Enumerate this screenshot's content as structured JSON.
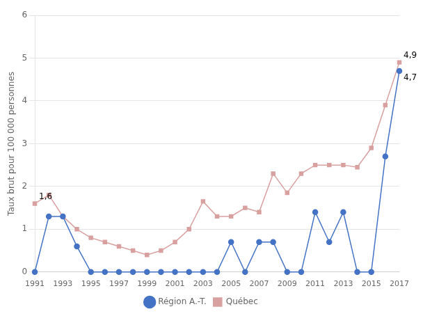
{
  "chart_data": {
    "type": "line",
    "x": [
      1991,
      1992,
      1993,
      1994,
      1995,
      1996,
      1997,
      1998,
      1999,
      2000,
      2001,
      2002,
      2003,
      2004,
      2005,
      2006,
      2007,
      2008,
      2009,
      2010,
      2011,
      2012,
      2013,
      2014,
      2015,
      2016,
      2017
    ],
    "series": [
      {
        "name": "Région A.-T.",
        "color": "#4472C4",
        "marker": "circle",
        "values": [
          0.0,
          1.3,
          1.3,
          0.6,
          0.0,
          0.0,
          0.0,
          0.0,
          0.0,
          0.0,
          0.0,
          0.0,
          0.0,
          0.0,
          0.7,
          0.0,
          0.7,
          0.7,
          0.0,
          0.0,
          1.4,
          0.7,
          1.4,
          0.0,
          0.0,
          2.7,
          4.7
        ]
      },
      {
        "name": "Québec",
        "color": "#D9A0A0",
        "marker": "square",
        "values": [
          1.6,
          1.8,
          1.3,
          1.0,
          0.8,
          0.7,
          0.6,
          0.5,
          0.4,
          0.5,
          0.7,
          1.0,
          1.65,
          1.3,
          1.3,
          1.5,
          1.4,
          2.3,
          1.85,
          2.3,
          2.5,
          2.5,
          2.5,
          2.45,
          2.9,
          3.9,
          4.9
        ]
      }
    ],
    "y_label": "Taux brut pour 100 000 personnes",
    "xlim": [
      1991,
      2017
    ],
    "xticks": [
      1991,
      1993,
      1995,
      1997,
      1999,
      2001,
      2003,
      2005,
      2007,
      2009,
      2011,
      2013,
      2015,
      2017
    ],
    "ylim": [
      0,
      6
    ],
    "yticks": [
      0,
      1,
      2,
      3,
      4,
      5,
      6
    ],
    "grid": "y",
    "legend": "bottom",
    "annotations": [
      {
        "text": "1,6",
        "x": 1991,
        "y": 1.6
      },
      {
        "text": "4,9",
        "x": 2017,
        "y": 4.9
      },
      {
        "text": "4,7",
        "x": 2017,
        "y": 4.7
      }
    ]
  }
}
